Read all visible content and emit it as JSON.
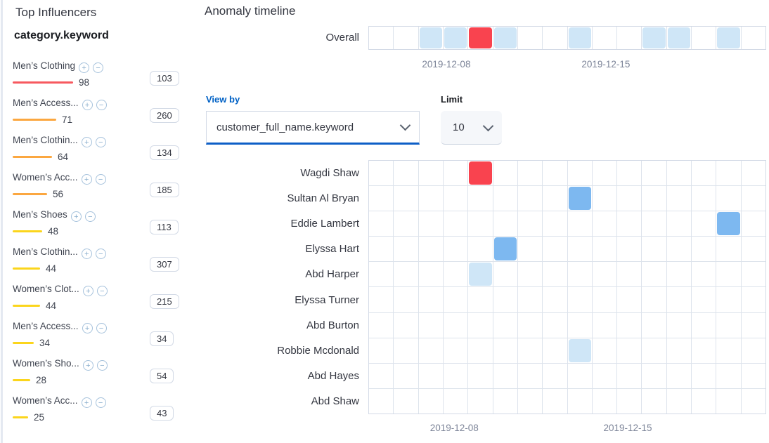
{
  "sidebar": {
    "title": "Top Influencers",
    "field_name": "category.keyword",
    "influencers": [
      {
        "label": "Men’s Clothing",
        "score": 98,
        "severity": "red",
        "count": 103
      },
      {
        "label": "Men’s Access...",
        "score": 71,
        "severity": "orange",
        "count": 260
      },
      {
        "label": "Men’s Clothin...",
        "score": 64,
        "severity": "orange",
        "count": 134
      },
      {
        "label": "Women’s Acc...",
        "score": 56,
        "severity": "orange",
        "count": 185
      },
      {
        "label": "Men’s Shoes",
        "score": 48,
        "severity": "yellow",
        "count": 113
      },
      {
        "label": "Men’s Clothin...",
        "score": 44,
        "severity": "yellow",
        "count": 307
      },
      {
        "label": "Women’s Clot...",
        "score": 44,
        "severity": "yellow",
        "count": 215
      },
      {
        "label": "Men’s Access...",
        "score": 34,
        "severity": "yellow",
        "count": 34
      },
      {
        "label": "Women’s Sho...",
        "score": 28,
        "severity": "yellow",
        "count": 54
      },
      {
        "label": "Women’s Acc...",
        "score": 25,
        "severity": "yellow",
        "count": 43
      }
    ]
  },
  "bar_colors": {
    "red": "#f7595f",
    "orange": "#fba740",
    "yellow": "#fbd51c"
  },
  "severity_colors": {
    "low": "#cfe6f7",
    "minor": "#7db8f0",
    "critical": "#f9434f"
  },
  "icons": {
    "add_filter": "+",
    "remove_filter": "−"
  },
  "timeline": {
    "title": "Anomaly timeline",
    "overall_label": "Overall",
    "columns": 16,
    "overall_cells": [
      "none",
      "none",
      "low",
      "low",
      "critical",
      "low",
      "none",
      "none",
      "low",
      "none",
      "none",
      "low",
      "low",
      "none",
      "low",
      "none"
    ],
    "top_axis": [
      {
        "text": "2019-12-08",
        "pos_pct": 19.6
      },
      {
        "text": "2019-12-15",
        "pos_pct": 59.7
      }
    ],
    "bottom_axis": [
      {
        "text": "2019-12-08",
        "pos_pct": 21.6
      },
      {
        "text": "2019-12-15",
        "pos_pct": 65.2
      }
    ],
    "view_by": {
      "label": "View by",
      "value": "customer_full_name.keyword"
    },
    "limit": {
      "label": "Limit",
      "value": "10"
    },
    "lanes": [
      {
        "label": "Wagdi Shaw",
        "cells": [
          {
            "col": 4,
            "severity": "critical"
          }
        ]
      },
      {
        "label": "Sultan Al Bryan",
        "cells": [
          {
            "col": 8,
            "severity": "minor"
          }
        ]
      },
      {
        "label": "Eddie Lambert",
        "cells": [
          {
            "col": 14,
            "severity": "minor"
          }
        ]
      },
      {
        "label": "Elyssa Hart",
        "cells": [
          {
            "col": 5,
            "severity": "minor"
          }
        ]
      },
      {
        "label": "Abd Harper",
        "cells": [
          {
            "col": 4,
            "severity": "low"
          }
        ]
      },
      {
        "label": "Elyssa Turner",
        "cells": []
      },
      {
        "label": "Abd Burton",
        "cells": []
      },
      {
        "label": "Robbie Mcdonald",
        "cells": [
          {
            "col": 8,
            "severity": "low"
          }
        ]
      },
      {
        "label": "Abd Hayes",
        "cells": []
      },
      {
        "label": "Abd Shaw",
        "cells": []
      }
    ]
  }
}
